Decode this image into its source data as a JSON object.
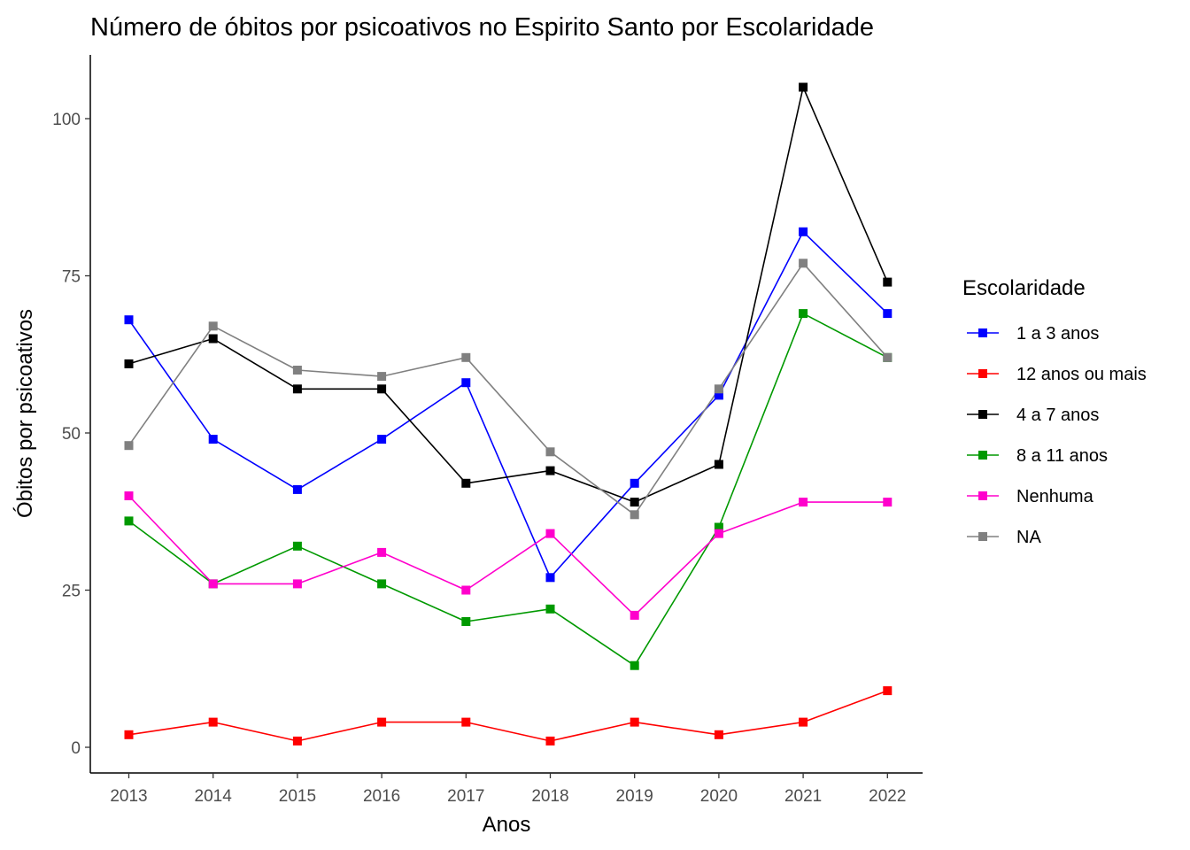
{
  "chart_data": {
    "type": "line",
    "title": "Número de óbitos por psicoativos no Espirito Santo por Escolaridade",
    "xlabel": "Anos",
    "ylabel": "Óbitos por psicoativos",
    "x": [
      2013,
      2014,
      2015,
      2016,
      2017,
      2018,
      2019,
      2020,
      2021,
      2022
    ],
    "x_tick_labels": [
      "2013",
      "2014",
      "2015",
      "2016",
      "2017",
      "2018",
      "2019",
      "2020",
      "2021",
      "2022"
    ],
    "y_ticks": [
      0,
      25,
      50,
      75,
      100
    ],
    "y_tick_labels": [
      "0",
      "25",
      "50",
      "75",
      "100"
    ],
    "ylim": [
      -4,
      110
    ],
    "grid": false,
    "legend": {
      "title": "Escolaridade",
      "position": "right"
    },
    "series": [
      {
        "name": "1 a 3 anos",
        "color": "#0000ff",
        "values": [
          68,
          49,
          41,
          49,
          58,
          27,
          42,
          56,
          82,
          69
        ]
      },
      {
        "name": "12 anos ou mais",
        "color": "#ff0000",
        "values": [
          2,
          4,
          1,
          4,
          4,
          1,
          4,
          2,
          4,
          9
        ]
      },
      {
        "name": "4 a 7 anos",
        "color": "#000000",
        "values": [
          61,
          65,
          57,
          57,
          42,
          44,
          39,
          45,
          105,
          74
        ]
      },
      {
        "name": "8 a 11 anos",
        "color": "#009900",
        "values": [
          36,
          26,
          32,
          26,
          20,
          22,
          13,
          35,
          69,
          62
        ]
      },
      {
        "name": "Nenhuma",
        "color": "#ff00cc",
        "values": [
          40,
          26,
          26,
          31,
          25,
          34,
          21,
          34,
          39,
          39
        ]
      },
      {
        "name": "NA",
        "color": "#808080",
        "values": [
          48,
          67,
          60,
          59,
          62,
          47,
          37,
          57,
          77,
          62
        ]
      }
    ]
  }
}
